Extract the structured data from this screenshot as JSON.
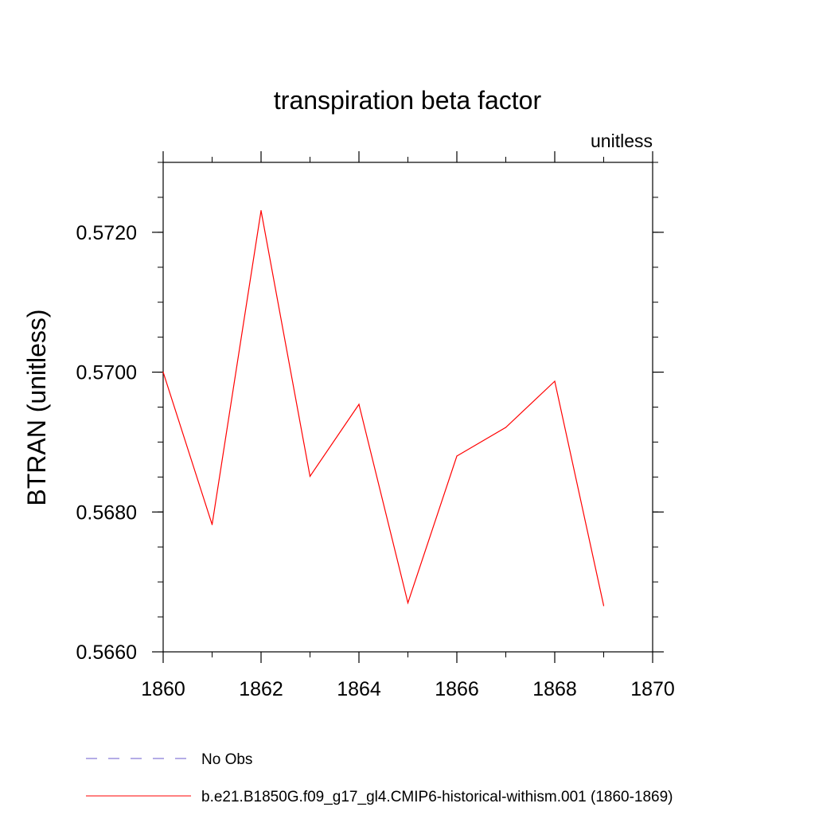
{
  "chart_data": {
    "type": "line",
    "title": "transpiration beta factor",
    "subtitle_right": "unitless",
    "ylabel": "BTRAN  (unitless)",
    "xlabel": "",
    "xlim": [
      1860,
      1870
    ],
    "ylim": [
      0.566,
      0.573
    ],
    "x_ticks": [
      1860,
      1862,
      1864,
      1866,
      1868,
      1870
    ],
    "x_tick_labels": [
      "1860",
      "1862",
      "1864",
      "1866",
      "1868",
      "1870"
    ],
    "y_ticks": [
      0.566,
      0.568,
      0.57,
      0.572
    ],
    "y_tick_labels": [
      "0.5660",
      "0.5680",
      "0.5700",
      "0.5720"
    ],
    "y_minor_step": 0.0005,
    "x_minor_step": 1,
    "grid": false,
    "legend_position": "bottom",
    "legend": [
      {
        "label": "No Obs",
        "color": "#6a5acd",
        "style": "dashed"
      },
      {
        "label": "b.e21.B1850G.f09_g17_gl4.CMIP6-historical-withism.001 (1860-1869)",
        "color": "#ff0000",
        "style": "solid"
      }
    ],
    "series": [
      {
        "name": "b.e21.B1850G.f09_g17_gl4.CMIP6-historical-withism.001 (1860-1869)",
        "color": "#ff0000",
        "x": [
          1860,
          1861,
          1862,
          1863,
          1864,
          1865,
          1866,
          1867,
          1868,
          1869
        ],
        "values": [
          0.57,
          0.56782,
          0.57231,
          0.56851,
          0.56954,
          0.5667,
          0.5688,
          0.56921,
          0.56987,
          0.56666
        ]
      }
    ]
  }
}
